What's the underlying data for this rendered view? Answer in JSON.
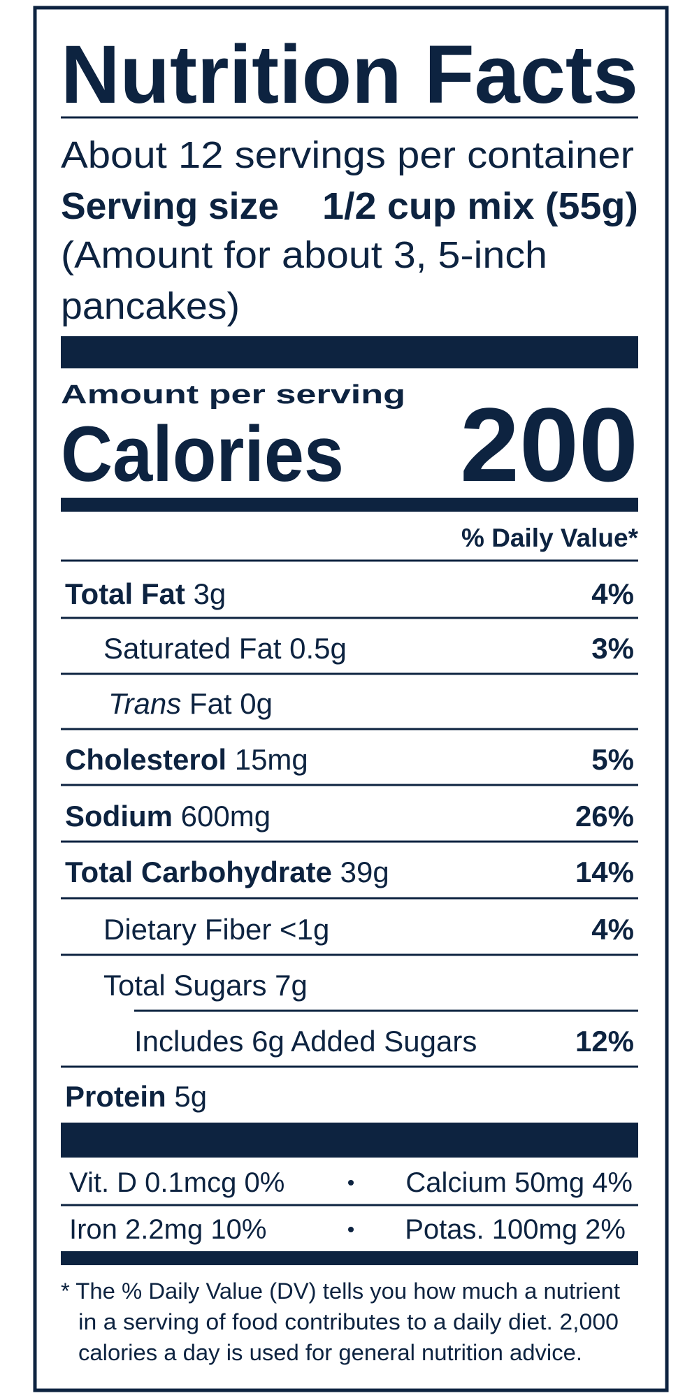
{
  "header": {
    "title": "Nutrition Facts",
    "servings": "About 12 servings per container",
    "serving_size_label": "Serving size",
    "serving_size_value": "1/2 cup mix (55g)",
    "serving_note": [
      "(Amount for about 3, 5-inch",
      "pancakes)"
    ]
  },
  "calories": {
    "amount_label": "Amount per serving",
    "label": "Calories",
    "value": 200
  },
  "daily_value_header": "% Daily Value*",
  "nutrients": [
    {
      "name": "Total Fat",
      "amount": "3g",
      "dv": "4%"
    },
    {
      "name": "Saturated Fat 0.5g",
      "dv": "3%"
    },
    {
      "prefix": "Trans",
      "name": "Fat 0g"
    },
    {
      "name": "Cholesterol",
      "amount": "15mg",
      "dv": "5%"
    },
    {
      "name": "Sodium",
      "amount": "600mg",
      "dv": "26%"
    },
    {
      "name": "Total Carbohydrate",
      "amount": "39g",
      "dv": "14%"
    },
    {
      "name": "Dietary Fiber <1g",
      "dv": "4%"
    },
    {
      "name": "Total Sugars 7g"
    },
    {
      "name": "Includes 6g Added Sugars",
      "dv": "12%"
    },
    {
      "name": "Protein",
      "amount": "5g"
    }
  ],
  "vitamins": [
    [
      "Vit. D 0.1mcg 0%",
      "Calcium 50mg 4%"
    ],
    [
      "Iron 2.2mg 10%",
      "Potas. 100mg 2%"
    ]
  ],
  "footnote": [
    "* The % Daily Value (DV) tells you how much a nutrient",
    "in a serving of food contributes to a daily diet. 2,000",
    "calories a day is used for general nutrition advice."
  ]
}
